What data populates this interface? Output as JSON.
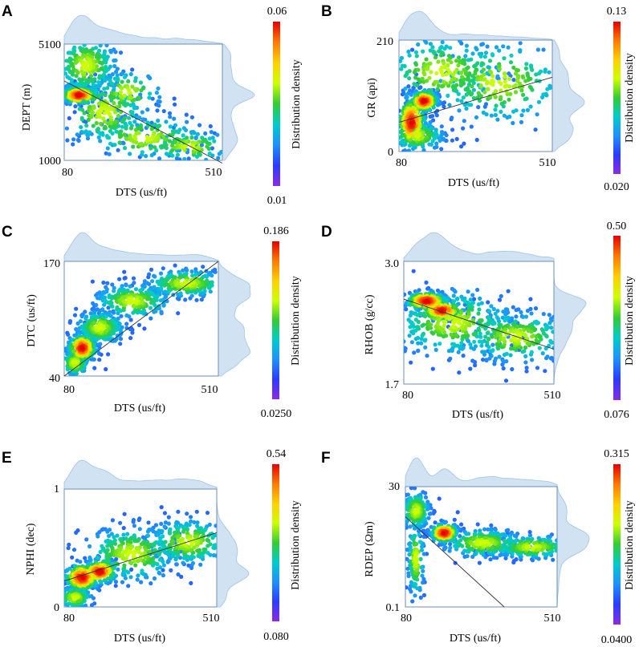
{
  "colormap": [
    "#8b2be2",
    "#2b3bff",
    "#1e90ff",
    "#00cccc",
    "#33cc33",
    "#ccff00",
    "#ffd000",
    "#ff7a00",
    "#e60000"
  ],
  "kde_color": "#c6dbef",
  "frame_color": "#6d8fb5",
  "chart_data": [
    {
      "id": "A",
      "panel_label": "A",
      "type": "scatter-density",
      "xlabel": "DTS (us/ft)",
      "ylabel": "DEPT (m)",
      "xlim": [
        80,
        510
      ],
      "ylim": [
        1000,
        5100
      ],
      "x_ticks": [
        "80",
        "510"
      ],
      "y_ticks": [
        "1000",
        "5100"
      ],
      "colorbar": {
        "label": "Distribution density",
        "max": "0.06",
        "min": "0.01"
      },
      "regression": [
        [
          80,
          3800
        ],
        [
          510,
          900
        ]
      ],
      "clusters": [
        {
          "cx": 140,
          "cy": 4350,
          "sx": 45,
          "sy": 550,
          "w": 0.25
        },
        {
          "cx": 120,
          "cy": 3300,
          "sx": 25,
          "sy": 150,
          "w": 0.22,
          "hot": 1
        },
        {
          "cx": 190,
          "cy": 2700,
          "sx": 60,
          "sy": 600,
          "w": 0.2
        },
        {
          "cx": 300,
          "cy": 1800,
          "sx": 80,
          "sy": 400,
          "w": 0.15
        },
        {
          "cx": 420,
          "cy": 1500,
          "sx": 60,
          "sy": 300,
          "w": 0.1
        },
        {
          "cx": 250,
          "cy": 3400,
          "sx": 50,
          "sy": 400,
          "w": 0.08
        }
      ]
    },
    {
      "id": "B",
      "panel_label": "B",
      "type": "scatter-density",
      "xlabel": "DTS (us/ft)",
      "ylabel": "GR (api)",
      "xlim": [
        80,
        510
      ],
      "ylim": [
        0,
        210
      ],
      "x_ticks": [
        "80",
        "510"
      ],
      "y_ticks": [
        "0",
        "210"
      ],
      "colorbar": {
        "label": "Distribution density",
        "max": "0.13",
        "min": "0.020"
      },
      "regression": [
        [
          80,
          55
        ],
        [
          510,
          140
        ]
      ],
      "clusters": [
        {
          "cx": 115,
          "cy": 55,
          "sx": 20,
          "sy": 25,
          "w": 0.22,
          "hot": 1
        },
        {
          "cx": 150,
          "cy": 95,
          "sx": 20,
          "sy": 10,
          "w": 0.2,
          "hot": 1
        },
        {
          "cx": 200,
          "cy": 150,
          "sx": 90,
          "sy": 35,
          "w": 0.2
        },
        {
          "cx": 360,
          "cy": 130,
          "sx": 100,
          "sy": 40,
          "w": 0.22
        },
        {
          "cx": 130,
          "cy": 30,
          "sx": 40,
          "sy": 15,
          "w": 0.16
        }
      ]
    },
    {
      "id": "C",
      "panel_label": "C",
      "type": "scatter-density",
      "xlabel": "DTS (us/ft)",
      "ylabel": "DTC (us/ft)",
      "xlim": [
        80,
        510
      ],
      "ylim": [
        40,
        170
      ],
      "x_ticks": [
        "80",
        "510"
      ],
      "y_ticks": [
        "40",
        "170"
      ],
      "colorbar": {
        "label": "Distribution density",
        "max": "0.186",
        "min": "0.0250"
      },
      "regression": [
        [
          80,
          40
        ],
        [
          510,
          170
        ]
      ],
      "clusters": [
        {
          "cx": 130,
          "cy": 72,
          "sx": 20,
          "sy": 8,
          "w": 0.2,
          "hot": 1
        },
        {
          "cx": 180,
          "cy": 95,
          "sx": 35,
          "sy": 10,
          "w": 0.22
        },
        {
          "cx": 270,
          "cy": 125,
          "sx": 55,
          "sy": 10,
          "w": 0.22
        },
        {
          "cx": 420,
          "cy": 145,
          "sx": 60,
          "sy": 8,
          "w": 0.22
        },
        {
          "cx": 110,
          "cy": 55,
          "sx": 20,
          "sy": 8,
          "w": 0.14
        }
      ]
    },
    {
      "id": "D",
      "panel_label": "D",
      "type": "scatter-density",
      "xlabel": "DTS (us/ft)",
      "ylabel": "RHOB (g/cc)",
      "xlim": [
        80,
        510
      ],
      "ylim": [
        1.7,
        3.0
      ],
      "x_ticks": [
        "80",
        "510"
      ],
      "y_ticks": [
        "1.7",
        "3.0"
      ],
      "colorbar": {
        "label": "Distribution density",
        "max": "0.50",
        "min": "0.076"
      },
      "regression": [
        [
          80,
          2.6
        ],
        [
          510,
          2.07
        ]
      ],
      "clusters": [
        {
          "cx": 145,
          "cy": 2.58,
          "sx": 30,
          "sy": 0.05,
          "w": 0.22,
          "hot": 1
        },
        {
          "cx": 190,
          "cy": 2.48,
          "sx": 30,
          "sy": 0.05,
          "w": 0.15,
          "hot": 1
        },
        {
          "cx": 220,
          "cy": 2.35,
          "sx": 90,
          "sy": 0.18,
          "w": 0.3
        },
        {
          "cx": 400,
          "cy": 2.2,
          "sx": 80,
          "sy": 0.14,
          "w": 0.25
        }
      ]
    },
    {
      "id": "E",
      "panel_label": "E",
      "type": "scatter-density",
      "xlabel": "DTS (us/ft)",
      "ylabel": "NPHI (dec)",
      "xlim": [
        80,
        510
      ],
      "ylim": [
        0,
        1
      ],
      "x_ticks": [
        "80",
        "510"
      ],
      "y_ticks": [
        "0",
        "1"
      ],
      "colorbar": {
        "label": "Distribution density",
        "max": "0.54",
        "min": "0.080"
      },
      "regression": [
        [
          80,
          0.22
        ],
        [
          510,
          0.63
        ]
      ],
      "clusters": [
        {
          "cx": 130,
          "cy": 0.25,
          "sx": 25,
          "sy": 0.06,
          "w": 0.2,
          "hot": 1
        },
        {
          "cx": 180,
          "cy": 0.3,
          "sx": 25,
          "sy": 0.05,
          "w": 0.18,
          "hot": 1
        },
        {
          "cx": 270,
          "cy": 0.45,
          "sx": 70,
          "sy": 0.12,
          "w": 0.25
        },
        {
          "cx": 430,
          "cy": 0.55,
          "sx": 60,
          "sy": 0.1,
          "w": 0.25
        },
        {
          "cx": 110,
          "cy": 0.08,
          "sx": 25,
          "sy": 0.05,
          "w": 0.12
        }
      ]
    },
    {
      "id": "F",
      "panel_label": "F",
      "type": "scatter-density",
      "xlabel": "DTS (us/ft)",
      "ylabel": "RDEP (Ωm)",
      "xlim": [
        80,
        510
      ],
      "ylim": [
        0.1,
        30
      ],
      "x_ticks": [
        "80",
        "510"
      ],
      "y_ticks": [
        "0.1",
        "30"
      ],
      "colorbar": {
        "label": "Distribution density",
        "max": "0.315",
        "min": "0.0400"
      },
      "regression": [
        [
          80,
          22.5
        ],
        [
          360,
          0.1
        ]
      ],
      "clusters": [
        {
          "cx": 110,
          "cy": 24,
          "sx": 20,
          "sy": 2.5,
          "w": 0.18
        },
        {
          "cx": 110,
          "cy": 12,
          "sx": 12,
          "sy": 5,
          "w": 0.12
        },
        {
          "cx": 190,
          "cy": 18.5,
          "sx": 20,
          "sy": 1.2,
          "w": 0.18,
          "hot": 1
        },
        {
          "cx": 300,
          "cy": 16,
          "sx": 60,
          "sy": 1.8,
          "w": 0.22
        },
        {
          "cx": 440,
          "cy": 15,
          "sx": 60,
          "sy": 1.5,
          "w": 0.2
        }
      ]
    }
  ]
}
